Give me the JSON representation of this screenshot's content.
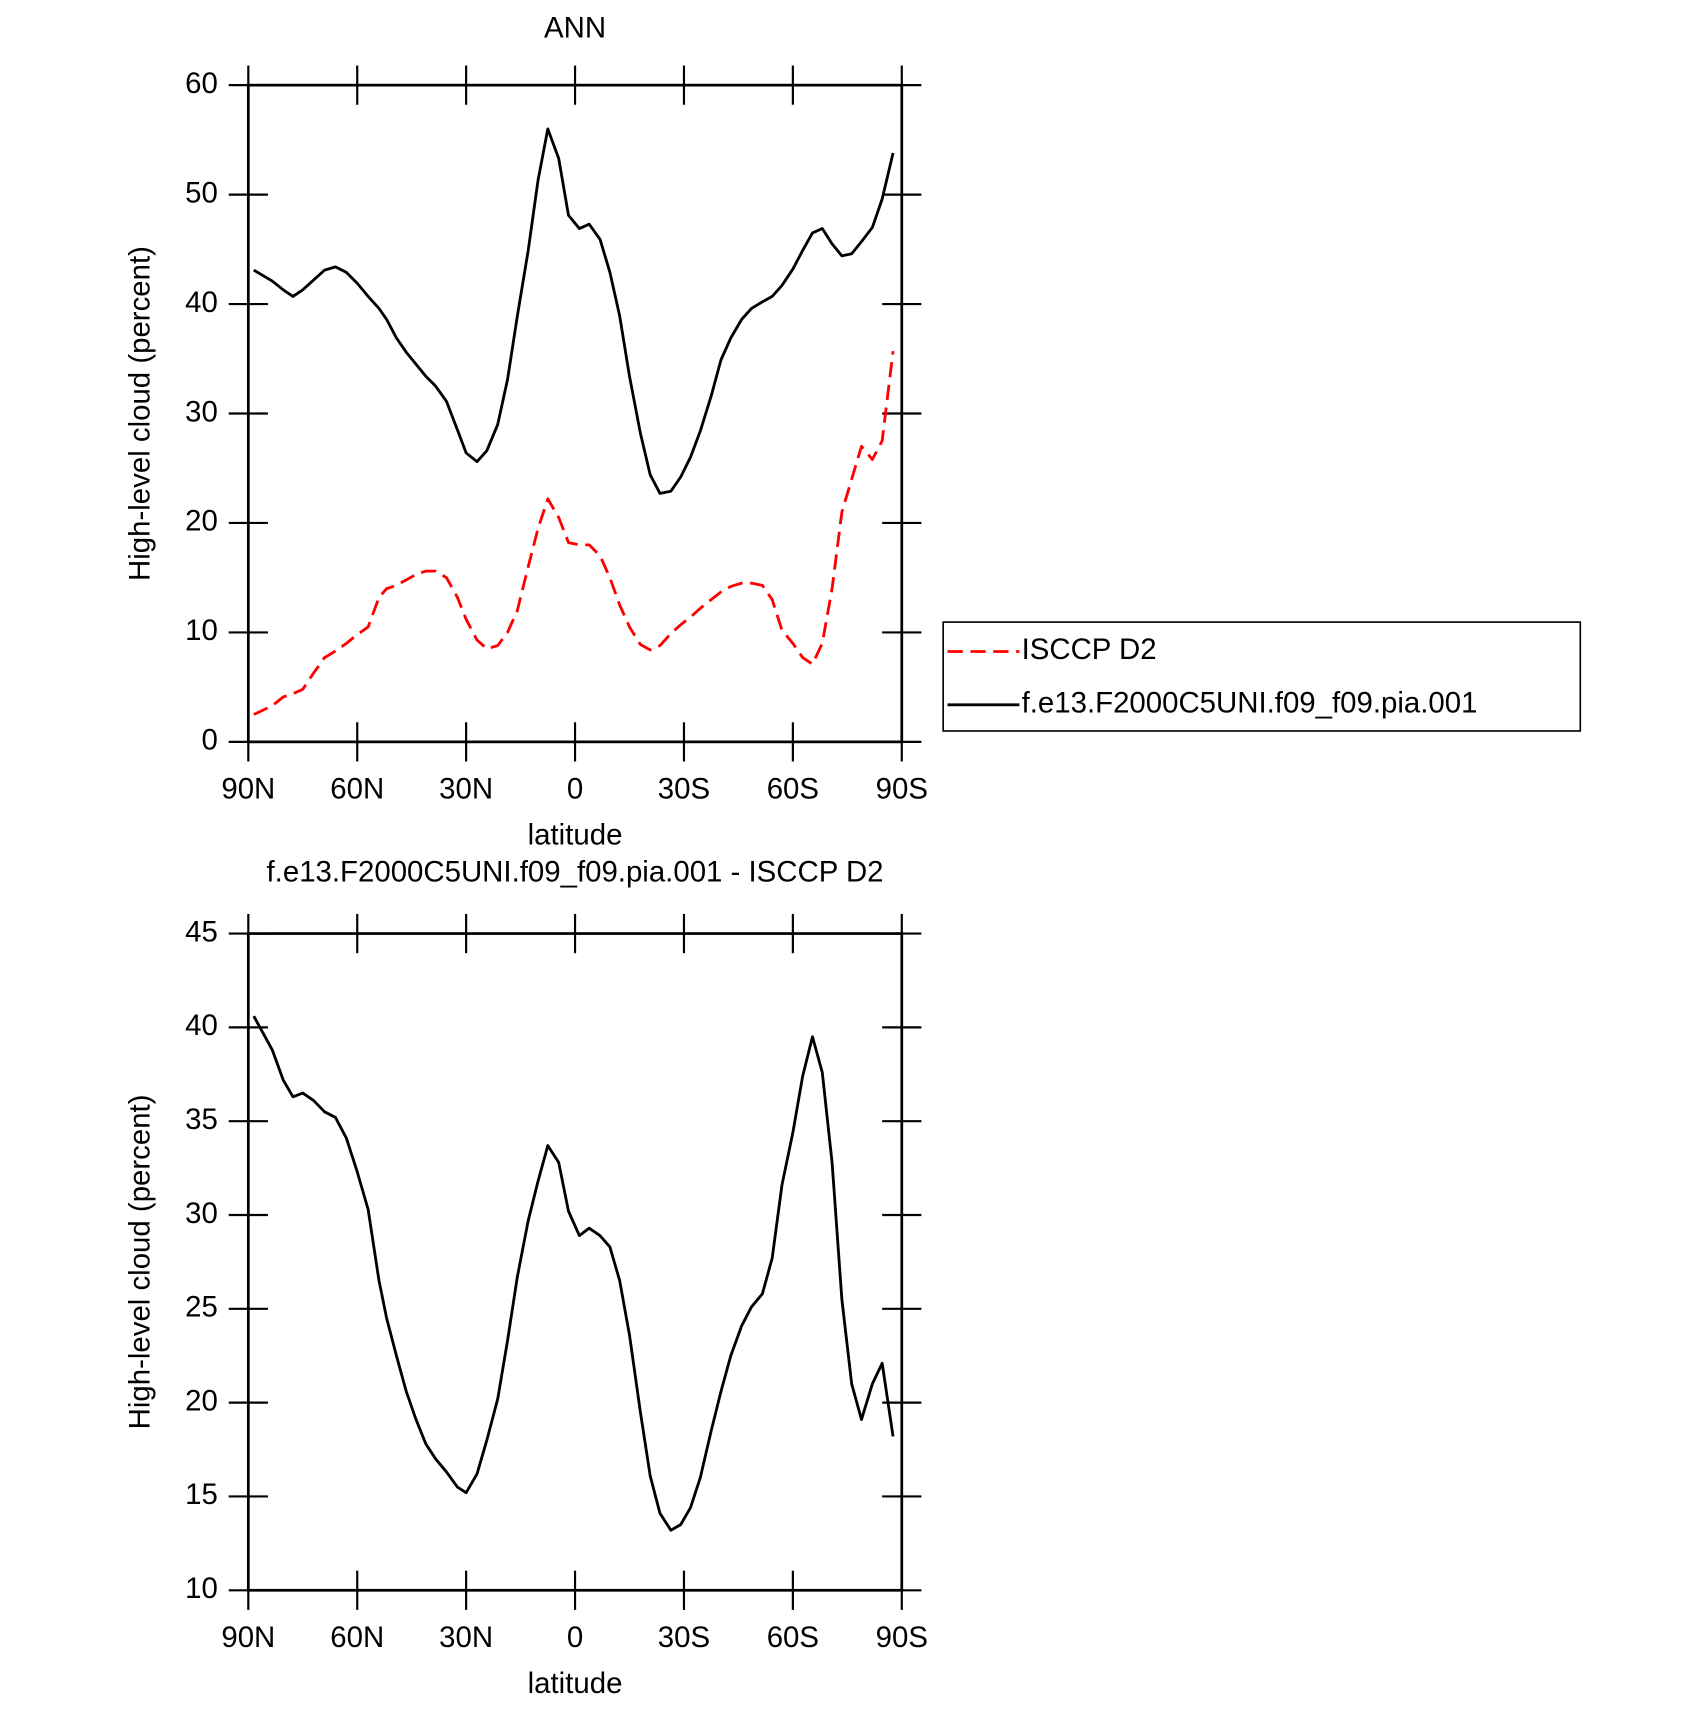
{
  "chart_data": [
    {
      "type": "line",
      "title": "ANN",
      "x_label": "latitude",
      "y_label": "High-level cloud (percent)",
      "x": [
        88.5,
        83.4,
        80.4,
        77.7,
        75,
        72,
        69,
        66,
        63,
        60,
        57,
        54,
        51.9,
        49.2,
        46.5,
        43.8,
        41.1,
        38.4,
        35.4,
        32.4,
        30,
        27,
        24.3,
        21.3,
        18.6,
        15.9,
        12.9,
        10.2,
        7.5,
        4.5,
        1.8,
        -1.2,
        -3.9,
        -6.9,
        -9.6,
        -12.3,
        -15,
        -18,
        -20.7,
        -23.4,
        -26.4,
        -29.1,
        -31.8,
        -34.5,
        -37.5,
        -40.2,
        -42.9,
        -45.9,
        -48.6,
        -51.6,
        -54.3,
        -57,
        -60,
        -62.7,
        -65.4,
        -68.1,
        -70.8,
        -73.5,
        -76.2,
        -78.9,
        -81.9,
        -84.6,
        -87.6
      ],
      "series": [
        {
          "name": "ISCCP D2",
          "color": "#ff0000",
          "dash": true,
          "values": [
            2.5,
            3.3,
            4.1,
            4.4,
            4.8,
            6.3,
            7.7,
            8.3,
            9,
            9.8,
            10.5,
            13.2,
            14,
            14.3,
            14.8,
            15.3,
            15.6,
            15.6,
            15,
            13.2,
            11.2,
            9.3,
            8.5,
            8.8,
            10,
            12,
            16,
            19.5,
            22.2,
            20.5,
            18.2,
            18,
            18,
            17,
            15,
            12.5,
            10.5,
            8.9,
            8.4,
            8.8,
            9.9,
            10.7,
            11.4,
            12.2,
            13,
            13.7,
            14.2,
            14.5,
            14.5,
            14.3,
            13,
            10.2,
            9,
            7.7,
            7.1,
            9,
            14,
            21,
            24,
            27,
            25.8,
            27.5,
            35.7
          ]
        },
        {
          "name": "f.e13.F2000C5UNI.f09_f09.pia.001",
          "color": "#000000",
          "dash": false,
          "values": [
            43.1,
            42.1,
            41.3,
            40.7,
            41.3,
            42.2,
            43.1,
            43.4,
            42.9,
            41.9,
            40.7,
            39.6,
            38.6,
            36.9,
            35.6,
            34.5,
            33.4,
            32.5,
            31.1,
            28.5,
            26.4,
            25.6,
            26.6,
            29,
            33.1,
            38.9,
            44.9,
            51.3,
            56,
            53.3,
            48.1,
            46.9,
            47.3,
            45.9,
            42.9,
            38.9,
            33.4,
            28.2,
            24.4,
            22.7,
            22.9,
            24.2,
            26,
            28.4,
            31.6,
            34.9,
            36.9,
            38.6,
            39.6,
            40.2,
            40.7,
            41.7,
            43.2,
            44.9,
            46.5,
            46.9,
            45.5,
            44.4,
            44.6,
            45.7,
            47,
            49.6,
            53.8
          ]
        }
      ],
      "xlim": [
        90,
        -90
      ],
      "xticks": [
        {
          "value": 90,
          "label": "90N"
        },
        {
          "value": 60,
          "label": "60N"
        },
        {
          "value": 30,
          "label": "30N"
        },
        0,
        {
          "value": -30,
          "label": "30S"
        },
        {
          "value": -60,
          "label": "60S"
        },
        {
          "value": -90,
          "label": "90S"
        }
      ],
      "ylim": [
        0,
        60
      ],
      "yticks": [
        0,
        10,
        20,
        30,
        40,
        50,
        60
      ],
      "legend": "right"
    },
    {
      "type": "line",
      "title": "f.e13.F2000C5UNI.f09_f09.pia.001 - ISCCP D2",
      "x_label": "latitude",
      "y_label": "High-level cloud (percent)",
      "x": [
        88.5,
        83.4,
        80.4,
        77.7,
        75,
        72,
        69,
        66,
        63,
        60,
        57,
        54,
        51.9,
        49.2,
        46.5,
        43.8,
        41.1,
        38.4,
        35.4,
        32.4,
        30,
        27,
        24.3,
        21.3,
        18.6,
        15.9,
        12.9,
        10.2,
        7.5,
        4.5,
        1.8,
        -1.2,
        -3.9,
        -6.9,
        -9.6,
        -12.3,
        -15,
        -18,
        -20.7,
        -23.4,
        -26.4,
        -29.1,
        -31.8,
        -34.5,
        -37.5,
        -40.2,
        -42.9,
        -45.9,
        -48.6,
        -51.6,
        -54.3,
        -57,
        -60,
        -62.7,
        -65.4,
        -68.1,
        -70.8,
        -73.5,
        -76.2,
        -78.9,
        -81.9,
        -84.6,
        -87.6
      ],
      "series": [
        {
          "color": "#000000",
          "dash": false,
          "values": [
            40.6,
            38.8,
            37.2,
            36.3,
            36.5,
            36.1,
            35.5,
            35.2,
            34.1,
            32.3,
            30.3,
            26.5,
            24.5,
            22.5,
            20.6,
            19.1,
            17.8,
            17,
            16.3,
            15.5,
            15.2,
            16.2,
            18,
            20.2,
            23.3,
            26.7,
            29.7,
            31.8,
            33.7,
            32.8,
            30.2,
            28.9,
            29.3,
            28.9,
            28.3,
            26.5,
            23.6,
            19.5,
            16.1,
            14.1,
            13.2,
            13.5,
            14.4,
            16,
            18.5,
            20.6,
            22.5,
            24.1,
            25.1,
            25.8,
            27.7,
            31.6,
            34.4,
            37.4,
            39.5,
            37.6,
            32.8,
            25.5,
            21,
            19.1,
            21,
            22.1,
            18.2
          ]
        }
      ],
      "xlim": [
        90,
        -90
      ],
      "xticks": [
        {
          "value": 90,
          "label": "90N"
        },
        {
          "value": 60,
          "label": "60N"
        },
        {
          "value": 30,
          "label": "30N"
        },
        0,
        {
          "value": -30,
          "label": "30S"
        },
        {
          "value": -60,
          "label": "60S"
        },
        {
          "value": -90,
          "label": "90S"
        }
      ],
      "ylim": [
        10,
        45
      ],
      "yticks": [
        10,
        15,
        20,
        25,
        30,
        35,
        40,
        45
      ]
    }
  ]
}
